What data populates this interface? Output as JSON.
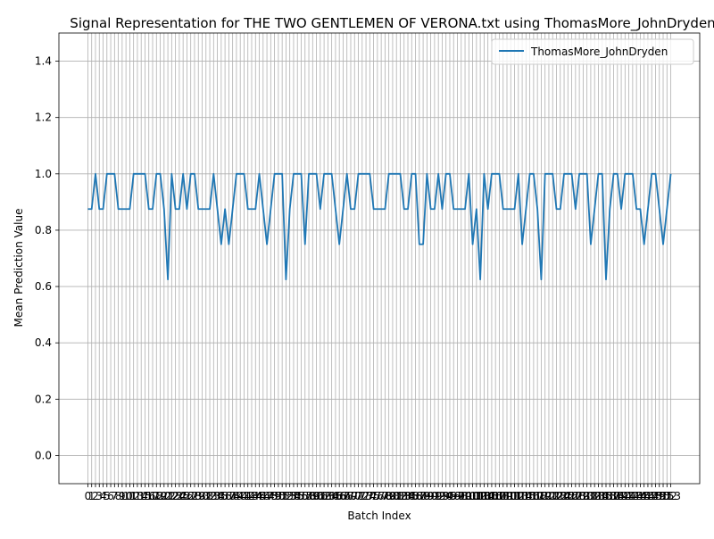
{
  "chart_data": {
    "type": "line",
    "title": "Signal Representation for THE TWO GENTLEMEN OF VERONA.txt using ThomasMore_JohnDryden",
    "xlabel": "Batch Index",
    "ylabel": "Mean Prediction Value",
    "ylim": [
      -0.1,
      1.5
    ],
    "xlim": [
      -7.6,
      160.6
    ],
    "y_ticks": [
      "0.0",
      "0.2",
      "0.4",
      "0.6",
      "0.8",
      "1.0",
      "1.2",
      "1.4"
    ],
    "grid": true,
    "legend_position": "top-right",
    "series": [
      {
        "name": "ThomasMore_JohnDryden",
        "color": "#1f77b4",
        "x": [
          0,
          1,
          2,
          3,
          4,
          5,
          6,
          7,
          8,
          9,
          10,
          11,
          12,
          13,
          14,
          15,
          16,
          17,
          18,
          19,
          20,
          21,
          22,
          23,
          24,
          25,
          26,
          27,
          28,
          29,
          30,
          31,
          32,
          33,
          34,
          35,
          36,
          37,
          38,
          39,
          40,
          41,
          42,
          43,
          44,
          45,
          46,
          47,
          48,
          49,
          50,
          51,
          52,
          53,
          54,
          55,
          56,
          57,
          58,
          59,
          60,
          61,
          62,
          63,
          64,
          65,
          66,
          67,
          68,
          69,
          70,
          71,
          72,
          73,
          74,
          75,
          76,
          77,
          78,
          79,
          80,
          81,
          82,
          83,
          84,
          85,
          86,
          87,
          88,
          89,
          90,
          91,
          92,
          93,
          94,
          95,
          96,
          97,
          98,
          99,
          100,
          101,
          102,
          103,
          104,
          105,
          106,
          107,
          108,
          109,
          110,
          111,
          112,
          113,
          114,
          115,
          116,
          117,
          118,
          119,
          120,
          121,
          122,
          123,
          124,
          125,
          126,
          127,
          128,
          129,
          130,
          131,
          132,
          133,
          134,
          135,
          136,
          137,
          138,
          139,
          140,
          141,
          142,
          143,
          144,
          145,
          146,
          147,
          148,
          149,
          150,
          151,
          152,
          153
        ],
        "values": [
          0.875,
          0.875,
          1.0,
          0.875,
          0.875,
          1.0,
          1.0,
          1.0,
          0.875,
          0.875,
          0.875,
          0.875,
          1.0,
          1.0,
          1.0,
          1.0,
          0.875,
          0.875,
          1.0,
          1.0,
          0.875,
          0.625,
          1.0,
          0.875,
          0.875,
          1.0,
          0.875,
          1.0,
          1.0,
          0.875,
          0.875,
          0.875,
          0.875,
          1.0,
          0.875,
          0.75,
          0.875,
          0.75,
          0.875,
          1.0,
          1.0,
          1.0,
          0.875,
          0.875,
          0.875,
          1.0,
          0.875,
          0.75,
          0.875,
          1.0,
          1.0,
          1.0,
          0.625,
          0.875,
          1.0,
          1.0,
          1.0,
          0.75,
          1.0,
          1.0,
          1.0,
          0.875,
          1.0,
          1.0,
          1.0,
          0.875,
          0.75,
          0.875,
          1.0,
          0.875,
          0.875,
          1.0,
          1.0,
          1.0,
          1.0,
          0.875,
          0.875,
          0.875,
          0.875,
          1.0,
          1.0,
          1.0,
          1.0,
          0.875,
          0.875,
          1.0,
          1.0,
          0.75,
          0.75,
          1.0,
          0.875,
          0.875,
          1.0,
          0.875,
          1.0,
          1.0,
          0.875,
          0.875,
          0.875,
          0.875,
          1.0,
          0.75,
          0.875,
          0.625,
          1.0,
          0.875,
          1.0,
          1.0,
          1.0,
          0.875,
          0.875,
          0.875,
          0.875,
          1.0,
          0.75,
          0.875,
          1.0,
          1.0,
          0.875,
          0.625,
          1.0,
          1.0,
          1.0,
          0.875,
          0.875,
          1.0,
          1.0,
          1.0,
          0.875,
          1.0,
          1.0,
          1.0,
          0.75,
          0.875,
          1.0,
          1.0,
          0.625,
          0.875,
          1.0,
          1.0,
          0.875,
          1.0,
          1.0,
          1.0,
          0.875,
          0.875,
          0.75,
          0.875,
          1.0,
          1.0,
          0.875,
          0.75,
          0.875,
          1.0
        ]
      }
    ]
  }
}
